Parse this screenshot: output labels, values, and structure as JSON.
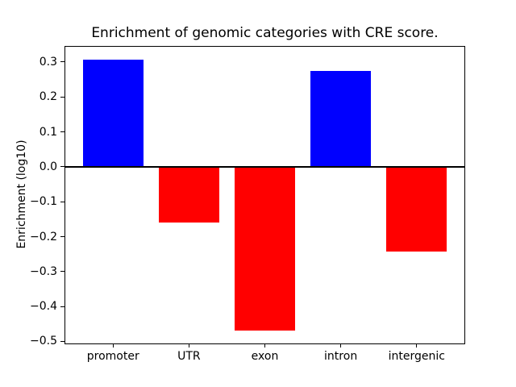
{
  "figure": {
    "background": "#ffffff"
  },
  "chart_data": {
    "type": "bar",
    "title": "Enrichment of genomic categories with CRE score.",
    "xlabel": "",
    "ylabel": "Enrichment (log10)",
    "categories": [
      "promoter",
      "UTR",
      "exon",
      "intron",
      "intergenic"
    ],
    "values": [
      0.307,
      -0.159,
      -0.468,
      0.275,
      -0.243
    ],
    "bar_colors": [
      "#0000ff",
      "#ff0000",
      "#ff0000",
      "#0000ff",
      "#ff0000"
    ],
    "positive_color": "#0000ff",
    "negative_color": "#ff0000",
    "bar_width": 0.8,
    "xlim": [
      -0.64,
      4.64
    ],
    "ylim": [
      -0.507,
      0.345
    ],
    "yticks": [
      0.3,
      0.2,
      0.1,
      0.0,
      -0.1,
      -0.2,
      -0.3,
      -0.4,
      -0.5
    ],
    "ytick_labels": [
      "0.3",
      "0.2",
      "0.1",
      "0.0",
      "−0.1",
      "−0.2",
      "−0.3",
      "−0.4",
      "−0.5"
    ],
    "grid": false,
    "legend": false,
    "zero_line": true,
    "zero_line_color": "#000000",
    "axis_color": "#000000",
    "text_color": "#000000"
  }
}
